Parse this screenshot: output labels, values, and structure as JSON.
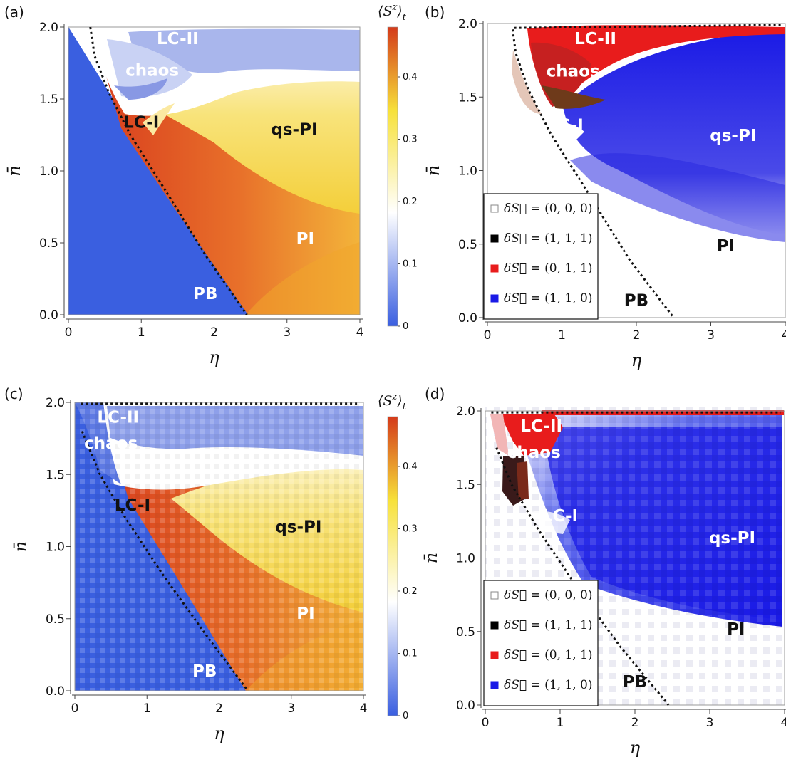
{
  "chart_data": [
    {
      "type": "heatmap",
      "panel_label": "(a)",
      "xlabel": "η",
      "ylabel": "n̄",
      "xlim": [
        0,
        4
      ],
      "ylim": [
        0,
        2
      ],
      "xticks": [
        "0",
        "1",
        "2",
        "3",
        "4"
      ],
      "yticks": [
        "0.0",
        "0.5",
        "1.0",
        "1.5",
        "2.0"
      ],
      "colorbar": {
        "title": "⟨S",
        "title_sup": "z",
        "title_sub": "t",
        "title_close": "⟩",
        "ticks": [
          "0",
          "0.1",
          "0.2",
          "0.3",
          "0.4"
        ],
        "range": [
          0,
          0.48
        ],
        "colors": [
          "#3a5fe0",
          "#ffffff",
          "#f7e13a",
          "#d43a1a"
        ]
      },
      "boundary": [
        [
          0.3,
          2.0
        ],
        [
          0.36,
          1.8
        ],
        [
          0.55,
          1.55
        ],
        [
          0.85,
          1.25
        ],
        [
          1.35,
          0.85
        ],
        [
          1.9,
          0.4
        ],
        [
          2.45,
          0.0
        ]
      ],
      "regions": [
        {
          "label": "LC-II",
          "x": 1.5,
          "y": 1.88,
          "color": "white"
        },
        {
          "label": "chaos",
          "x": 1.15,
          "y": 1.66,
          "color": "white"
        },
        {
          "label": "LC-I",
          "x": 1.0,
          "y": 1.3,
          "color": "black"
        },
        {
          "label": "qs-PI",
          "x": 3.1,
          "y": 1.25,
          "color": "black"
        },
        {
          "label": "PI",
          "x": 3.25,
          "y": 0.49,
          "color": "white"
        },
        {
          "label": "PB",
          "x": 1.88,
          "y": 0.11,
          "color": "white"
        }
      ]
    },
    {
      "type": "heatmap",
      "panel_label": "(b)",
      "xlabel": "η",
      "ylabel": "n̄",
      "xlim": [
        0,
        4
      ],
      "ylim": [
        0,
        2
      ],
      "xticks": [
        "0",
        "1",
        "2",
        "3",
        "4"
      ],
      "yticks": [
        "0.0",
        "0.5",
        "1.0",
        "1.5",
        "2.0"
      ],
      "legend": [
        {
          "label": "= (0, 0, 0)",
          "color": "#ffffff"
        },
        {
          "label": "= (1, 1, 1)",
          "color": "#000000"
        },
        {
          "label": "= (0, 1, 1)",
          "color": "#e81c1c"
        },
        {
          "label": "= (1, 1, 0)",
          "color": "#1a1ae6"
        }
      ],
      "legend_prefix": "δS⃗",
      "legend_position": "bottom-left",
      "boundary": [
        [
          0.34,
          1.96
        ],
        [
          0.38,
          1.8
        ],
        [
          0.55,
          1.55
        ],
        [
          0.85,
          1.25
        ],
        [
          1.35,
          0.85
        ],
        [
          1.9,
          0.4
        ],
        [
          2.5,
          0.0
        ]
      ],
      "regions": [
        {
          "label": "LC-II",
          "x": 1.45,
          "y": 1.86,
          "color": "white"
        },
        {
          "label": "chaos",
          "x": 1.15,
          "y": 1.64,
          "color": "white"
        },
        {
          "label": "LC-I",
          "x": 1.05,
          "y": 1.27,
          "color": "white"
        },
        {
          "label": "qs-PI",
          "x": 3.3,
          "y": 1.2,
          "color": "white"
        },
        {
          "label": "PI",
          "x": 3.2,
          "y": 0.45,
          "color": "black"
        },
        {
          "label": "PB",
          "x": 2.0,
          "y": 0.08,
          "color": "black"
        }
      ]
    },
    {
      "type": "heatmap",
      "panel_label": "(c)",
      "xlabel": "η",
      "ylabel": "n̄",
      "xlim": [
        0,
        4
      ],
      "ylim": [
        0,
        2
      ],
      "xticks": [
        "0",
        "1",
        "2",
        "3",
        "4"
      ],
      "yticks": [
        "0.0",
        "0.5",
        "1.0",
        "1.5",
        "2.0"
      ],
      "colorbar": {
        "title": "⟨S",
        "title_sup": "z",
        "title_sub": "t",
        "title_close": "⟩",
        "ticks": [
          "0",
          "0.1",
          "0.2",
          "0.3",
          "0.4"
        ],
        "range": [
          0,
          0.48
        ],
        "colors": [
          "#3a5fe0",
          "#ffffff",
          "#f7e13a",
          "#d43a1a"
        ]
      },
      "boundary": [
        [
          0.1,
          1.8
        ],
        [
          0.35,
          1.5
        ],
        [
          0.7,
          1.2
        ],
        [
          1.2,
          0.82
        ],
        [
          1.8,
          0.4
        ],
        [
          2.4,
          0.0
        ]
      ],
      "regions": [
        {
          "label": "LC-II",
          "x": 0.6,
          "y": 1.86,
          "color": "white"
        },
        {
          "label": "chaos",
          "x": 0.5,
          "y": 1.68,
          "color": "white"
        },
        {
          "label": "LC-I",
          "x": 0.8,
          "y": 1.25,
          "color": "black"
        },
        {
          "label": "qs-PI",
          "x": 3.1,
          "y": 1.1,
          "color": "black"
        },
        {
          "label": "PI",
          "x": 3.2,
          "y": 0.5,
          "color": "white"
        },
        {
          "label": "PB",
          "x": 1.8,
          "y": 0.1,
          "color": "white"
        }
      ]
    },
    {
      "type": "heatmap",
      "panel_label": "(d)",
      "xlabel": "η",
      "ylabel": "n̄",
      "xlim": [
        0,
        4
      ],
      "ylim": [
        0,
        2
      ],
      "xticks": [
        "0",
        "1",
        "2",
        "3",
        "4"
      ],
      "yticks": [
        "0.0",
        "0.5",
        "1.0",
        "1.5",
        "2.0"
      ],
      "legend": [
        {
          "label": "= (0, 0, 0)",
          "color": "#ffffff"
        },
        {
          "label": "= (1, 1, 1)",
          "color": "#000000"
        },
        {
          "label": "= (0, 1, 1)",
          "color": "#e81c1c"
        },
        {
          "label": "= (1, 1, 0)",
          "color": "#1a1ae6"
        }
      ],
      "legend_prefix": "δS⃗",
      "legend_position": "bottom-left",
      "boundary": [
        [
          0.15,
          1.75
        ],
        [
          0.35,
          1.5
        ],
        [
          0.7,
          1.2
        ],
        [
          1.2,
          0.82
        ],
        [
          1.8,
          0.4
        ],
        [
          2.45,
          0.0
        ]
      ],
      "regions": [
        {
          "label": "LC-II",
          "x": 0.75,
          "y": 1.86,
          "color": "white"
        },
        {
          "label": "chaos",
          "x": 0.65,
          "y": 1.68,
          "color": "white"
        },
        {
          "label": "LC-I",
          "x": 1.0,
          "y": 1.25,
          "color": "white"
        },
        {
          "label": "qs-PI",
          "x": 3.3,
          "y": 1.1,
          "color": "white"
        },
        {
          "label": "PI",
          "x": 3.35,
          "y": 0.48,
          "color": "black"
        },
        {
          "label": "PB",
          "x": 2.0,
          "y": 0.12,
          "color": "black"
        }
      ]
    }
  ]
}
